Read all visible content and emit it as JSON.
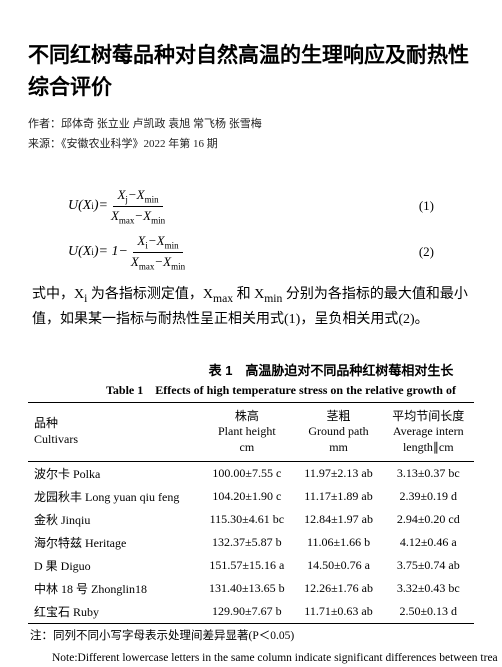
{
  "title": "不同红树莓品种对自然高温的生理响应及耐热性综合评价",
  "author_line": "作者：邱体奇 张立业 卢凯政 袁旭 常飞杨 张雪梅",
  "source_line": "来源：《安徽农业科学》2022 年第 16 期",
  "formula1_num": "(1)",
  "formula2_num": "(2)",
  "body_text": "式中，X<sub>i</sub> 为各指标测定值，X<sub>max</sub> 和 X<sub>min</sub> 分别为各指标的最大值和最小值，如果某一指标与耐热性呈正相关用式(1)，呈负相关用式(2)。",
  "table": {
    "caption_zh": "表 1　高温胁迫对不同品种红树莓相对生长",
    "caption_en": "Table 1　Effects of high temperature stress on the relative growth of",
    "headers": [
      {
        "cn": "品种",
        "en": "Cultivars",
        "unit": ""
      },
      {
        "cn": "株高",
        "en": "Plant height",
        "unit": "cm"
      },
      {
        "cn": "茎粗",
        "en": "Ground path",
        "unit": "mm"
      },
      {
        "cn": "平均节间长度",
        "en": "Average intern",
        "unit": "length∥cm"
      }
    ],
    "rows": [
      {
        "cultivar": "波尔卡 Polka",
        "c1": "100.00±7.55 c",
        "c2": "11.97±2.13 ab",
        "c3": "3.13±0.37 bc"
      },
      {
        "cultivar": "龙园秋丰 Long yuan qiu feng",
        "c1": "104.20±1.90 c",
        "c2": "11.17±1.89 ab",
        "c3": "2.39±0.19 d"
      },
      {
        "cultivar": "金秋 Jinqiu",
        "c1": "115.30±4.61 bc",
        "c2": "12.84±1.97 ab",
        "c3": "2.94±0.20 cd"
      },
      {
        "cultivar": "海尔特兹 Heritage",
        "c1": "132.37±5.87 b",
        "c2": "11.06±1.66 b",
        "c3": "4.12±0.46 a"
      },
      {
        "cultivar": "D 果 Diguo",
        "c1": "151.57±15.16 a",
        "c2": "14.50±0.76 a",
        "c3": "3.75±0.74 ab"
      },
      {
        "cultivar": "中林 18 号 Zhonglin18",
        "c1": "131.40±13.65 b",
        "c2": "12.26±1.76 ab",
        "c3": "3.32±0.43 bc"
      },
      {
        "cultivar": "红宝石 Ruby",
        "c1": "129.90±7.67 b",
        "c2": "11.71±0.63 ab",
        "c3": "2.50±0.13 d"
      }
    ]
  },
  "note_zh": "注：同列不同小写字母表示处理间差异显著(P＜0.05)",
  "note_en": "Note:Different lowercase letters in the same column indicate significant differences between trea"
}
